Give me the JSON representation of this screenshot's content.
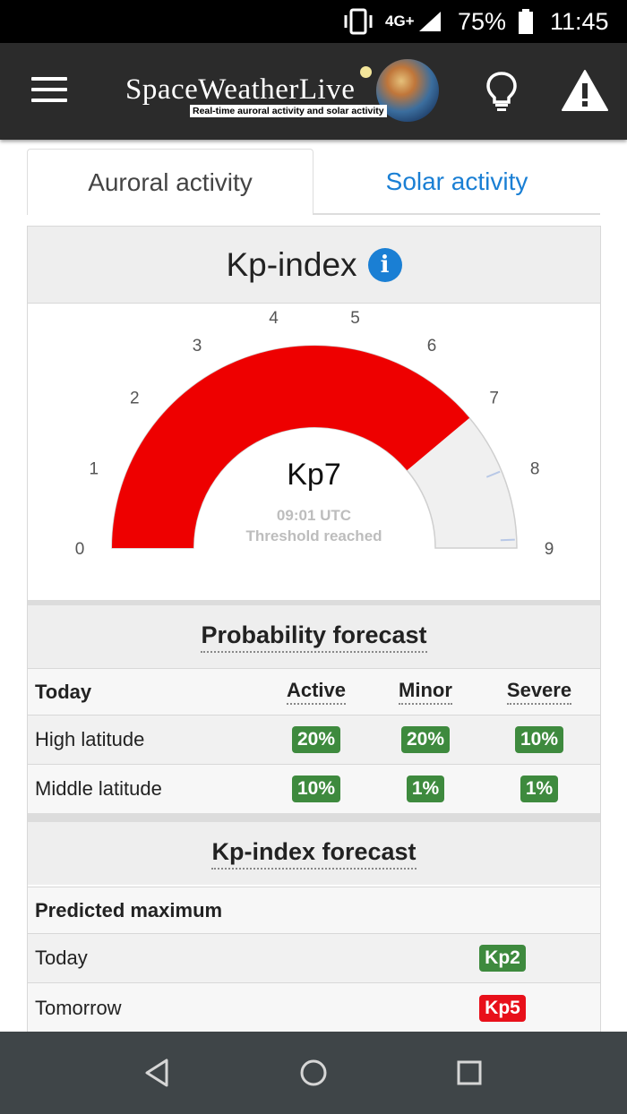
{
  "status_bar": {
    "network": "4G+",
    "battery": "75%",
    "time": "11:45"
  },
  "app_bar": {
    "logo_text": "SpaceWeatherLive",
    "tagline": "Real-time auroral activity and solar activity"
  },
  "tabs": [
    {
      "label": "Auroral activity",
      "active": true
    },
    {
      "label": "Solar activity",
      "active": false
    }
  ],
  "kp_card": {
    "title": "Kp-index",
    "gauge": {
      "value_label": "Kp7",
      "value": 7,
      "min": 0,
      "max": 9,
      "ticks": [
        "0",
        "1",
        "2",
        "3",
        "4",
        "5",
        "6",
        "7",
        "8",
        "9"
      ],
      "time": "09:01 UTC",
      "status": "Threshold reached",
      "fill_color": "#ee0000",
      "track_color": "#f0f0f0"
    }
  },
  "probability": {
    "title": "Probability forecast",
    "header": {
      "label": "Today",
      "col1": "Active",
      "col2": "Minor",
      "col3": "Severe"
    },
    "rows": [
      {
        "label": "High latitude",
        "col1": "20%",
        "col2": "20%",
        "col3": "10%"
      },
      {
        "label": "Middle latitude",
        "col1": "10%",
        "col2": "1%",
        "col3": "1%"
      }
    ]
  },
  "kp_forecast": {
    "title": "Kp-index forecast",
    "header": "Predicted maximum",
    "rows": [
      {
        "label": "Today",
        "value": "Kp2",
        "color": "#3e8a3e"
      },
      {
        "label": "Tomorrow",
        "value": "Kp5",
        "color": "#e8101a"
      }
    ]
  },
  "nav": {
    "back": "back-icon",
    "home": "home-icon",
    "recent": "recent-apps-icon"
  }
}
